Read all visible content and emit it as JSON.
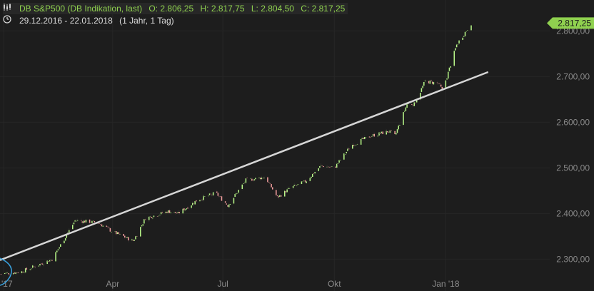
{
  "header": {
    "name": "DB S&P500 (DB Indikation, last)",
    "open": "O: 2.806,25",
    "high": "H: 2.817,75",
    "low": "L: 2.804,50",
    "close": "C: 2.817,25",
    "range": "29.12.2016 - 22.01.2018",
    "period": "(1 Jahr, 1 Tag)",
    "chart_icon": "candlestick-chart-icon",
    "clock_icon": "clock-icon"
  },
  "colors": {
    "background": "#1d1d1d",
    "grid": "#262626",
    "up": "#b8f58a",
    "down": "#f2a0a0",
    "trend": "#d6d6d6",
    "last_label": "#8fd14f",
    "marker": "#3aa3e0"
  },
  "chart_data": {
    "type": "candlestick",
    "title": "DB S&P500 (DB Indikation, last)",
    "x_ticks": [
      {
        "label": "'17",
        "date": "2017-01"
      },
      {
        "label": "Apr",
        "date": "2017-04"
      },
      {
        "label": "Jul",
        "date": "2017-07"
      },
      {
        "label": "Okt",
        "date": "2017-10"
      },
      {
        "label": "Jan '18",
        "date": "2018-01"
      }
    ],
    "y_ticks": [
      {
        "label": "2.300,00",
        "value": 2300
      },
      {
        "label": "2.400,00",
        "value": 2400
      },
      {
        "label": "2.500,00",
        "value": 2500
      },
      {
        "label": "2.600,00",
        "value": 2600
      },
      {
        "label": "2.700,00",
        "value": 2700
      },
      {
        "label": "2.800,00",
        "value": 2800
      }
    ],
    "ylim": [
      2235,
      2860
    ],
    "xlim": [
      "2016-12-29",
      "2018-01-22"
    ],
    "last_value": 2817.25,
    "last_label": "2.817,25",
    "trendline": {
      "start": {
        "date": "2016-12-29",
        "value": 2298
      },
      "end": {
        "date": "2018-02-05",
        "value": 2710
      }
    },
    "anchors": [
      [
        "2016-12-29",
        2268
      ],
      [
        "2017-01-15",
        2272
      ],
      [
        "2017-02-10",
        2300
      ],
      [
        "2017-03-01",
        2385
      ],
      [
        "2017-03-20",
        2380
      ],
      [
        "2017-04-01",
        2360
      ],
      [
        "2017-04-18",
        2340
      ],
      [
        "2017-04-28",
        2390
      ],
      [
        "2017-05-17",
        2405
      ],
      [
        "2017-05-25",
        2400
      ],
      [
        "2017-06-10",
        2430
      ],
      [
        "2017-06-25",
        2445
      ],
      [
        "2017-07-05",
        2418
      ],
      [
        "2017-07-20",
        2473
      ],
      [
        "2017-08-05",
        2480
      ],
      [
        "2017-08-15",
        2435
      ],
      [
        "2017-08-25",
        2455
      ],
      [
        "2017-09-07",
        2470
      ],
      [
        "2017-09-20",
        2505
      ],
      [
        "2017-10-01",
        2500
      ],
      [
        "2017-10-15",
        2550
      ],
      [
        "2017-10-31",
        2570
      ],
      [
        "2017-11-15",
        2580
      ],
      [
        "2017-11-20",
        2570
      ],
      [
        "2017-11-30",
        2640
      ],
      [
        "2017-12-06",
        2640
      ],
      [
        "2017-12-15",
        2690
      ],
      [
        "2017-12-26",
        2685
      ],
      [
        "2017-12-29",
        2670
      ],
      [
        "2018-01-02",
        2700
      ],
      [
        "2018-01-10",
        2770
      ],
      [
        "2018-01-22",
        2817
      ]
    ]
  }
}
